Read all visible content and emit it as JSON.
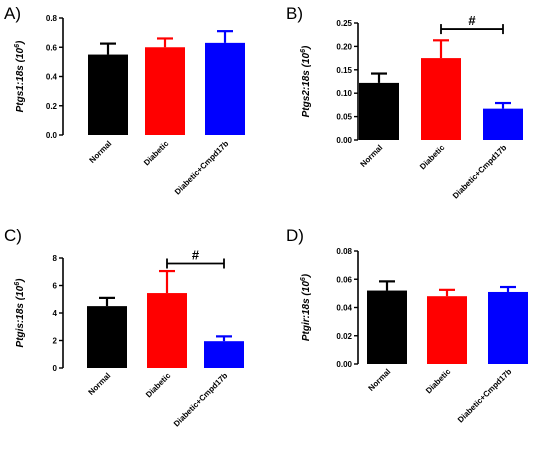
{
  "colors": {
    "normal": "#000000",
    "diabetic": "#ff0000",
    "cmpd": "#0000ff"
  },
  "chart_data": [
    {
      "panel": "A)",
      "type": "bar",
      "ylabel": {
        "gene": "Ptgs1",
        "ratio": ":18s (10",
        "exp": "6",
        "close": ")"
      },
      "categories": [
        "Normal",
        "Diabetic",
        "Diabetic+Cmpd17b"
      ],
      "values": [
        0.55,
        0.6,
        0.63
      ],
      "errors": [
        0.075,
        0.06,
        0.08
      ],
      "ylim": [
        0,
        0.8
      ],
      "yticks": [
        "0.0",
        "0.2",
        "0.4",
        "0.6",
        "0.8"
      ],
      "significance": null
    },
    {
      "panel": "B)",
      "type": "bar",
      "ylabel": {
        "gene": "Ptgs2",
        "ratio": ":18s (10",
        "exp": "6",
        "close": ")"
      },
      "categories": [
        "Normal",
        "Diabetic",
        "Diabetic+Cmpd17b"
      ],
      "values": [
        0.122,
        0.175,
        0.067
      ],
      "errors": [
        0.02,
        0.038,
        0.012
      ],
      "ylim": [
        0,
        0.25
      ],
      "yticks": [
        "0.00",
        "0.05",
        "0.10",
        "0.15",
        "0.20",
        "0.25"
      ],
      "significance": {
        "label": "#",
        "from": 1,
        "to": 2,
        "y": 0.237
      }
    },
    {
      "panel": "C)",
      "type": "bar",
      "ylabel": {
        "gene": "Ptgis",
        "ratio": ":18s (10",
        "exp": "6",
        "close": ")"
      },
      "categories": [
        "Normal",
        "Diabetic",
        "Diabetic+Cmpd17b"
      ],
      "values": [
        4.5,
        5.45,
        1.95
      ],
      "errors": [
        0.6,
        1.6,
        0.35
      ],
      "ylim": [
        0,
        8
      ],
      "yticks": [
        "0",
        "2",
        "4",
        "6",
        "8"
      ],
      "significance": {
        "label": "#",
        "from": 1,
        "to": 2,
        "y": 7.6
      }
    },
    {
      "panel": "D)",
      "type": "bar",
      "ylabel": {
        "gene": "Ptgir",
        "ratio": ":18s (10",
        "exp": "6",
        "close": ")"
      },
      "categories": [
        "Normal",
        "Diabetic",
        "Diabetic+Cmpd17b"
      ],
      "values": [
        0.052,
        0.048,
        0.051
      ],
      "errors": [
        0.0065,
        0.0045,
        0.0035
      ],
      "ylim": [
        0,
        0.08
      ],
      "yticks": [
        "0.00",
        "0.02",
        "0.04",
        "0.06",
        "0.08"
      ],
      "significance": null
    }
  ]
}
